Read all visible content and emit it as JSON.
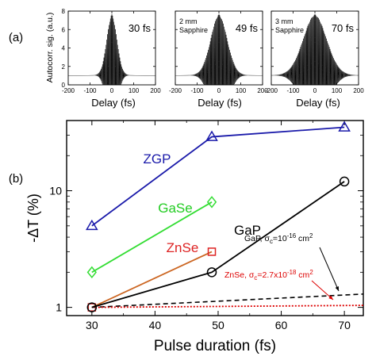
{
  "chart_data": [
    {
      "type": "line",
      "panel_label": "(a)",
      "ylabel": "Autocorr. sig. (a.u.)",
      "yticks": [
        "0",
        "2",
        "4",
        "6",
        "8"
      ],
      "ylim": [
        0,
        8
      ],
      "xlim": [
        -200,
        200
      ],
      "xticks": [
        "-200",
        "-100",
        "0",
        "100",
        "200"
      ],
      "xlabel": "Delay (fs)",
      "subplots": [
        {
          "duration_label": "30 fs",
          "note": [],
          "width_fs": 30,
          "peak": 7
        },
        {
          "duration_label": "49 fs",
          "note": [
            "2 mm",
            "Sapphire"
          ],
          "width_fs": 49,
          "peak": 7
        },
        {
          "duration_label": "70 fs",
          "note": [
            "3 mm",
            "Sapphire"
          ],
          "width_fs": 70,
          "peak": 7
        }
      ]
    },
    {
      "type": "line",
      "panel_label": "(b)",
      "xlabel": "Pulse duration (fs)",
      "ylabel": "-ΔT (%)",
      "xlim": [
        26,
        73
      ],
      "ylim": [
        0.85,
        40
      ],
      "yscale": "log",
      "xticks": [
        "30",
        "40",
        "50",
        "60",
        "70"
      ],
      "yticks": [
        "1",
        "10"
      ],
      "series": [
        {
          "name": "ZGP",
          "color": "#1a1aaa",
          "marker": "triangle",
          "x": [
            30,
            49,
            70
          ],
          "y": [
            5,
            29,
            35
          ]
        },
        {
          "name": "GaSe",
          "color": "#33dd33",
          "marker": "diamond",
          "x": [
            30,
            49
          ],
          "y": [
            2,
            8
          ]
        },
        {
          "name": "ZnSe",
          "color": "#cc6622",
          "marker": "square",
          "marker_color": "#dd2222",
          "x": [
            30,
            49
          ],
          "y": [
            1,
            3
          ]
        },
        {
          "name": "GaP",
          "color": "#000000",
          "marker": "circle",
          "x": [
            30,
            49,
            70
          ],
          "y": [
            1,
            2,
            12
          ]
        }
      ],
      "fits": [
        {
          "label_main": "GaP, σ",
          "label_sub": "c",
          "label_rest": "=10",
          "label_sup": "-16",
          "label_unit": " cm",
          "label_unit_sup": "2",
          "color": "#000000",
          "x": [
            30,
            73
          ],
          "y": [
            1,
            1.3
          ]
        },
        {
          "label_main": "ZnSe, σ",
          "label_sub": "c",
          "label_rest": "=2.7x10",
          "label_sup": "-18",
          "label_unit": " cm",
          "label_unit_sup": "2",
          "color": "#dd0000",
          "x": [
            30,
            73
          ],
          "y": [
            1,
            1.04
          ]
        }
      ]
    }
  ]
}
